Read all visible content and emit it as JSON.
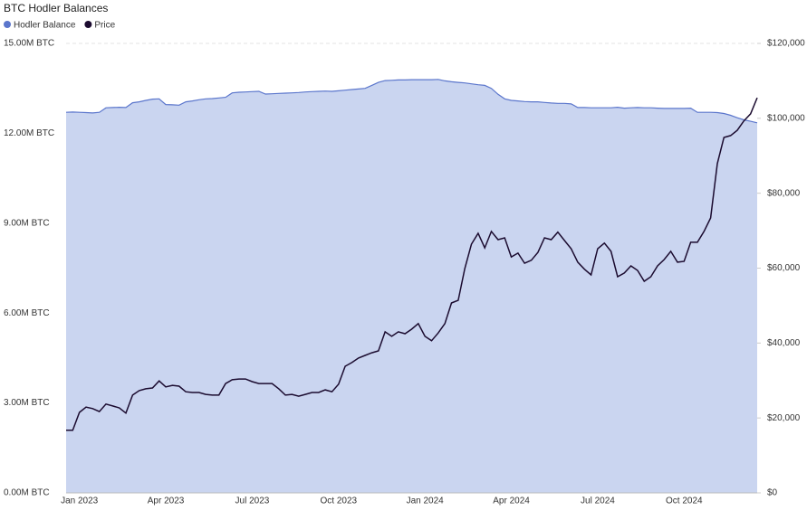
{
  "chart_data": {
    "type": "line",
    "title": "BTC Hodler Balances",
    "categories": [
      null,
      null,
      "Jan 2023",
      null,
      null,
      null,
      null,
      null,
      null,
      null,
      null,
      null,
      null,
      null,
      null,
      "Apr 2023",
      null,
      null,
      null,
      null,
      null,
      null,
      null,
      null,
      null,
      null,
      null,
      null,
      "Jul 2023",
      null,
      null,
      null,
      null,
      null,
      null,
      null,
      null,
      null,
      null,
      null,
      null,
      "Oct 2023",
      null,
      null,
      null,
      null,
      null,
      null,
      null,
      null,
      null,
      null,
      null,
      null,
      "Jan 2024",
      null,
      null,
      null,
      null,
      null,
      null,
      null,
      null,
      null,
      null,
      null,
      null,
      "Apr 2024",
      null,
      null,
      null,
      null,
      null,
      null,
      null,
      null,
      null,
      null,
      null,
      null,
      "Jul 2024",
      null,
      null,
      null,
      null,
      null,
      null,
      null,
      null,
      null,
      null,
      null,
      null,
      "Oct 2024",
      null,
      null,
      null,
      null,
      null,
      null,
      null,
      null,
      null,
      null,
      null
    ],
    "series": [
      {
        "name": "Hodler Balance",
        "color": "#5b76cc",
        "fill": "#cad5f0",
        "style": "area",
        "axis": "y",
        "values": [
          12700000,
          12710000,
          12700000,
          12690000,
          12680000,
          12700000,
          12850000,
          12860000,
          12870000,
          12860000,
          13020000,
          13050000,
          13100000,
          13140000,
          13150000,
          12960000,
          12950000,
          12940000,
          13050000,
          13080000,
          13120000,
          13150000,
          13160000,
          13180000,
          13200000,
          13350000,
          13370000,
          13380000,
          13390000,
          13400000,
          13310000,
          13320000,
          13330000,
          13340000,
          13350000,
          13360000,
          13380000,
          13390000,
          13400000,
          13410000,
          13400000,
          13420000,
          13440000,
          13460000,
          13480000,
          13500000,
          13600000,
          13700000,
          13760000,
          13770000,
          13780000,
          13780000,
          13790000,
          13790000,
          13790000,
          13790000,
          13800000,
          13750000,
          13720000,
          13700000,
          13680000,
          13650000,
          13620000,
          13600000,
          13500000,
          13300000,
          13150000,
          13100000,
          13080000,
          13060000,
          13050000,
          13050000,
          13030000,
          13010000,
          13000000,
          13000000,
          12980000,
          12860000,
          12860000,
          12850000,
          12850000,
          12850000,
          12850000,
          12870000,
          12840000,
          12850000,
          12860000,
          12850000,
          12850000,
          12840000,
          12830000,
          12830000,
          12830000,
          12830000,
          12840000,
          12700000,
          12700000,
          12700000,
          12690000,
          12660000,
          12600000,
          12520000,
          12450000,
          12400000,
          12350000
        ]
      },
      {
        "name": "Price",
        "color": "#1b0b2f",
        "style": "line",
        "axis": "y2",
        "values": [
          16700,
          16700,
          21500,
          22900,
          22500,
          21700,
          23700,
          23200,
          22700,
          21300,
          26100,
          27300,
          27800,
          28000,
          29900,
          28300,
          28700,
          28500,
          27000,
          26800,
          26800,
          26300,
          26100,
          26100,
          29200,
          30200,
          30400,
          30400,
          29700,
          29200,
          29200,
          29200,
          27800,
          26100,
          26300,
          25800,
          26300,
          26800,
          26800,
          27500,
          27000,
          29000,
          33800,
          34800,
          36000,
          36700,
          37400,
          37900,
          43000,
          41800,
          43000,
          42500,
          43700,
          45200,
          41800,
          40600,
          42700,
          45200,
          50700,
          51400,
          59900,
          66400,
          69300,
          65400,
          69800,
          67600,
          68100,
          63000,
          64000,
          61300,
          62100,
          64200,
          68100,
          67600,
          69600,
          67400,
          65200,
          61600,
          59700,
          58200,
          65200,
          66700,
          64500,
          57700,
          58700,
          60600,
          59400,
          56500,
          57700,
          60600,
          62300,
          64500,
          61600,
          61800,
          66900,
          66900,
          69800,
          73400,
          87900,
          94900,
          95400,
          96800,
          99300,
          101200,
          105500
        ]
      }
    ],
    "ylim": [
      0,
      15000000
    ],
    "yticks": [
      {
        "value": 0,
        "label": "0.00M BTC"
      },
      {
        "value": 3000000,
        "label": "3.00M BTC"
      },
      {
        "value": 6000000,
        "label": "6.00M BTC"
      },
      {
        "value": 9000000,
        "label": "9.00M BTC"
      },
      {
        "value": 12000000,
        "label": "12.00M BTC"
      },
      {
        "value": 15000000,
        "label": "15.00M BTC"
      }
    ],
    "y2lim": [
      0,
      120000
    ],
    "y2ticks": [
      {
        "value": 0,
        "label": "$0"
      },
      {
        "value": 20000,
        "label": "$20,000"
      },
      {
        "value": 40000,
        "label": "$40,000"
      },
      {
        "value": 60000,
        "label": "$60,000"
      },
      {
        "value": 80000,
        "label": "$80,000"
      },
      {
        "value": 100000,
        "label": "$100,000"
      },
      {
        "value": 120000,
        "label": "$120,000"
      }
    ],
    "grid": true
  }
}
